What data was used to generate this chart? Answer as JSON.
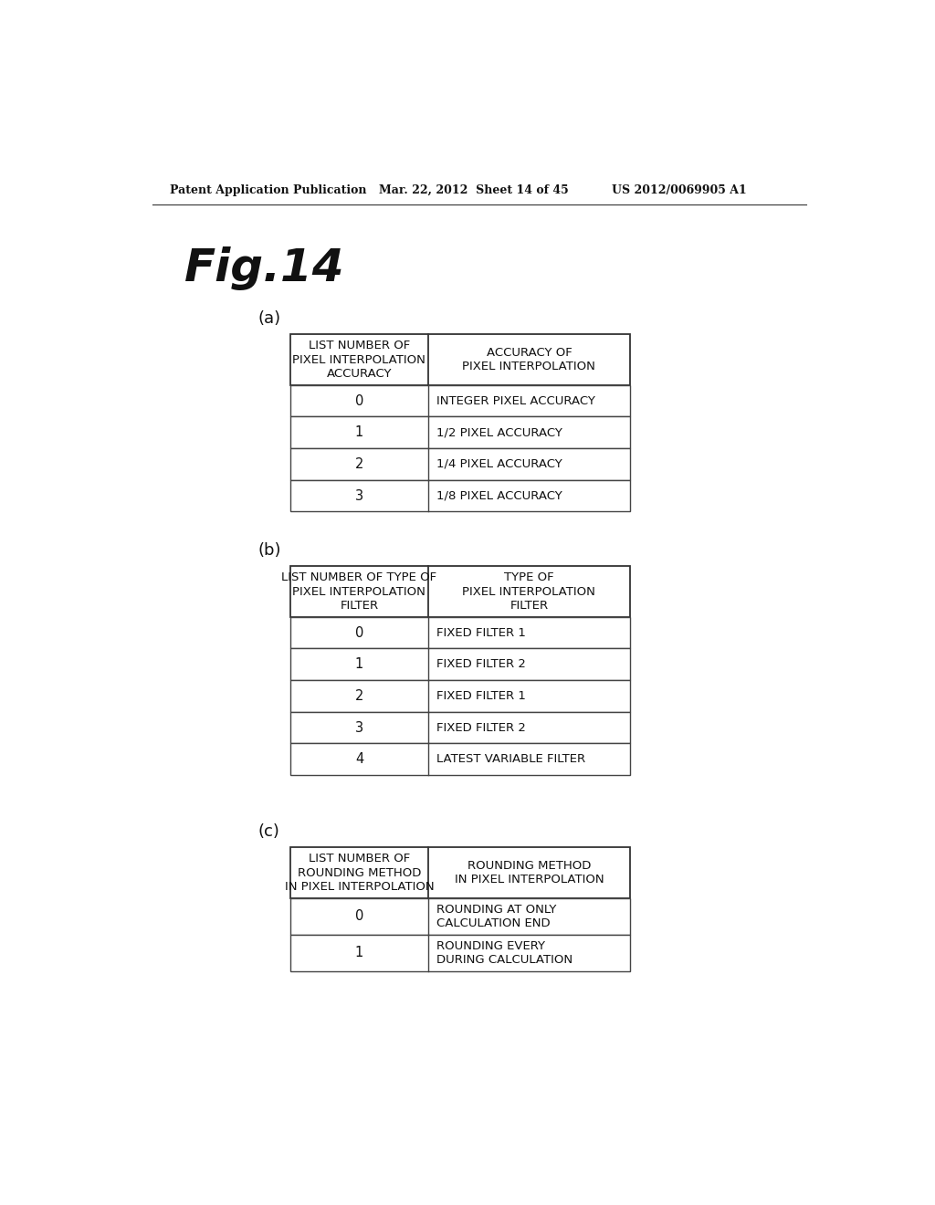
{
  "header_left": "Patent Application Publication",
  "header_mid": "Mar. 22, 2012  Sheet 14 of 45",
  "header_right": "US 2012/0069905 A1",
  "fig_label": "Fig.14",
  "bg_color": "#ffffff",
  "table_a": {
    "label": "(a)",
    "col1_header": "LIST NUMBER OF\nPIXEL INTERPOLATION\nACCURACY",
    "col2_header": "ACCURACY OF\nPIXEL INTERPOLATION",
    "rows": [
      [
        "0",
        "INTEGER PIXEL ACCURACY"
      ],
      [
        "1",
        "1/2 PIXEL ACCURACY"
      ],
      [
        "2",
        "1/4 PIXEL ACCURACY"
      ],
      [
        "3",
        "1/8 PIXEL ACCURACY"
      ]
    ]
  },
  "table_b": {
    "label": "(b)",
    "col1_header": "LIST NUMBER OF TYPE OF\nPIXEL INTERPOLATION\nFILTER",
    "col2_header": "TYPE OF\nPIXEL INTERPOLATION\nFILTER",
    "rows": [
      [
        "0",
        "FIXED FILTER 1"
      ],
      [
        "1",
        "FIXED FILTER 2"
      ],
      [
        "2",
        "FIXED FILTER 1"
      ],
      [
        "3",
        "FIXED FILTER 2"
      ],
      [
        "4",
        "LATEST VARIABLE FILTER"
      ]
    ]
  },
  "table_c": {
    "label": "(c)",
    "col1_header": "LIST NUMBER OF\nROUNDING METHOD\nIN PIXEL INTERPOLATION",
    "col2_header": "ROUNDING METHOD\nIN PIXEL INTERPOLATION",
    "rows": [
      [
        "0",
        "ROUNDING AT ONLY\nCALCULATION END"
      ],
      [
        "1",
        "ROUNDING EVERY\nDURING CALCULATION"
      ]
    ]
  }
}
